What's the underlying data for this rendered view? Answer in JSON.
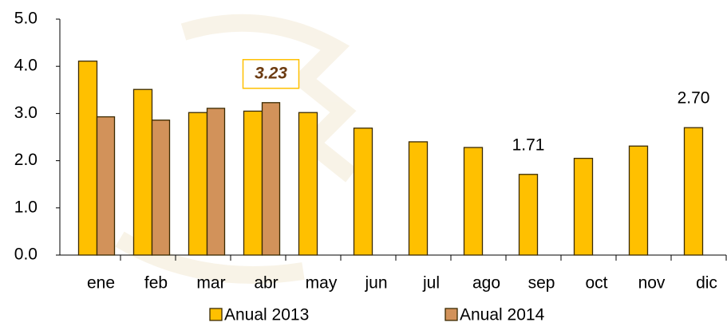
{
  "chart_data": {
    "type": "bar",
    "categories": [
      "ene",
      "feb",
      "mar",
      "abr",
      "may",
      "jun",
      "jul",
      "ago",
      "sep",
      "oct",
      "nov",
      "dic"
    ],
    "series": [
      {
        "name": "Anual 2013",
        "color": "#FFC000",
        "values": [
          4.11,
          3.51,
          3.02,
          3.05,
          3.02,
          2.69,
          2.4,
          2.28,
          1.71,
          2.05,
          2.31,
          2.7
        ],
        "value_labels": [
          null,
          null,
          null,
          null,
          null,
          null,
          null,
          null,
          "1.71",
          null,
          null,
          "2.70"
        ]
      },
      {
        "name": "Anual 2014",
        "color": "#D2925A",
        "values": [
          2.93,
          2.86,
          3.11,
          3.23,
          null,
          null,
          null,
          null,
          null,
          null,
          null,
          null
        ],
        "value_labels": [
          null,
          null,
          null,
          "3.23",
          null,
          null,
          null,
          null,
          null,
          null,
          null,
          null
        ]
      }
    ],
    "ylim": [
      0,
      5
    ],
    "yticks": [
      {
        "value": 0,
        "label": "0.0"
      },
      {
        "value": 1,
        "label": "1.0"
      },
      {
        "value": 2,
        "label": "2.0"
      },
      {
        "value": 3,
        "label": "3.0"
      },
      {
        "value": 4,
        "label": "4.0"
      },
      {
        "value": 5,
        "label": "5.0"
      }
    ],
    "legend": "bottom"
  }
}
